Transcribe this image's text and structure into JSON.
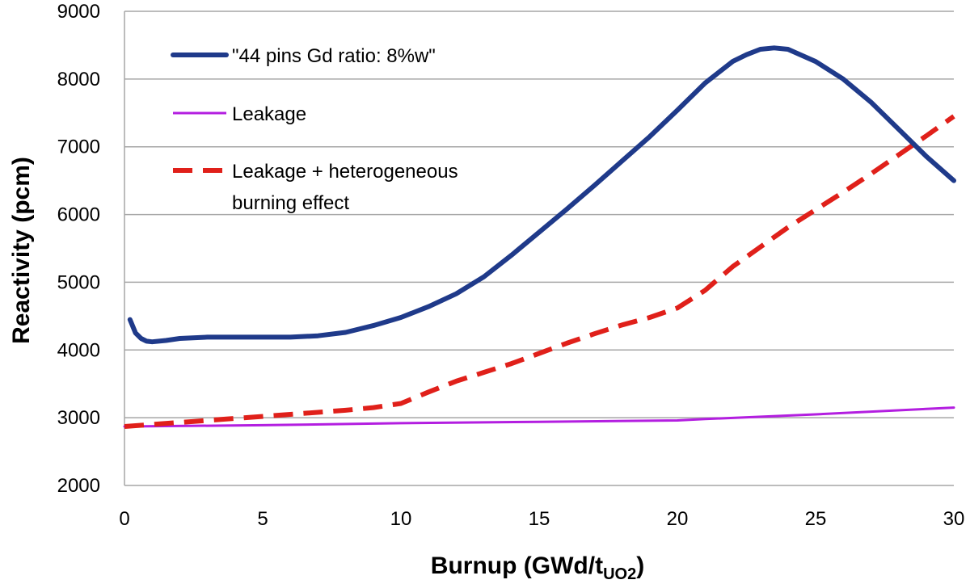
{
  "chart_data": {
    "type": "line",
    "xlabel": "Burnup (GWd/t",
    "xlabel_sub": "UO2",
    "xlabel_end": ")",
    "ylabel": "Reactivity (pcm)",
    "xlim": [
      0,
      30
    ],
    "ylim": [
      2000,
      9000
    ],
    "xticks": [
      0,
      5,
      10,
      15,
      20,
      25,
      30
    ],
    "yticks": [
      2000,
      3000,
      4000,
      5000,
      6000,
      7000,
      8000,
      9000
    ],
    "grid": "horizontal",
    "legend_position": "top-left",
    "series": [
      {
        "name": "\"44 pins Gd ratio: 8%w\"",
        "color": "#1f3a8a",
        "style": "solid",
        "x": [
          0.2,
          0.4,
          0.6,
          0.8,
          1.0,
          1.5,
          2.0,
          3.0,
          4.0,
          5.0,
          6.0,
          7.0,
          8.0,
          9.0,
          10.0,
          11.0,
          12.0,
          13.0,
          14.0,
          15.0,
          16.0,
          17.0,
          18.0,
          19.0,
          20.0,
          21.0,
          22.0,
          22.5,
          23.0,
          23.5,
          24.0,
          25.0,
          26.0,
          27.0,
          28.0,
          29.0,
          30.0
        ],
        "y": [
          4450,
          4250,
          4170,
          4130,
          4120,
          4140,
          4170,
          4190,
          4190,
          4190,
          4190,
          4210,
          4260,
          4360,
          4480,
          4640,
          4830,
          5080,
          5400,
          5740,
          6080,
          6430,
          6790,
          7150,
          7540,
          7940,
          8260,
          8360,
          8440,
          8460,
          8440,
          8260,
          8000,
          7660,
          7260,
          6860,
          6500
        ]
      },
      {
        "name": "Leakage",
        "color": "#b31ee0",
        "style": "solid",
        "x": [
          0,
          5,
          10,
          15,
          20,
          21,
          25,
          30
        ],
        "y": [
          2870,
          2890,
          2920,
          2940,
          2960,
          2980,
          3050,
          3150
        ]
      },
      {
        "name": "Leakage + heterogeneous burning effect",
        "name_lines": [
          "Leakage + heterogeneous",
          "burning effect"
        ],
        "color": "#e0201a",
        "style": "dashed",
        "x": [
          0,
          2,
          4,
          6,
          8,
          9,
          10,
          11,
          12,
          13,
          14,
          15,
          16,
          17,
          18,
          19,
          20,
          21,
          22,
          23,
          24,
          25,
          26,
          27,
          28,
          29,
          30
        ],
        "y": [
          2870,
          2930,
          2990,
          3050,
          3110,
          3150,
          3210,
          3380,
          3540,
          3670,
          3800,
          3950,
          4100,
          4240,
          4370,
          4480,
          4620,
          4880,
          5230,
          5520,
          5810,
          6070,
          6330,
          6600,
          6880,
          7160,
          7450
        ]
      }
    ]
  }
}
